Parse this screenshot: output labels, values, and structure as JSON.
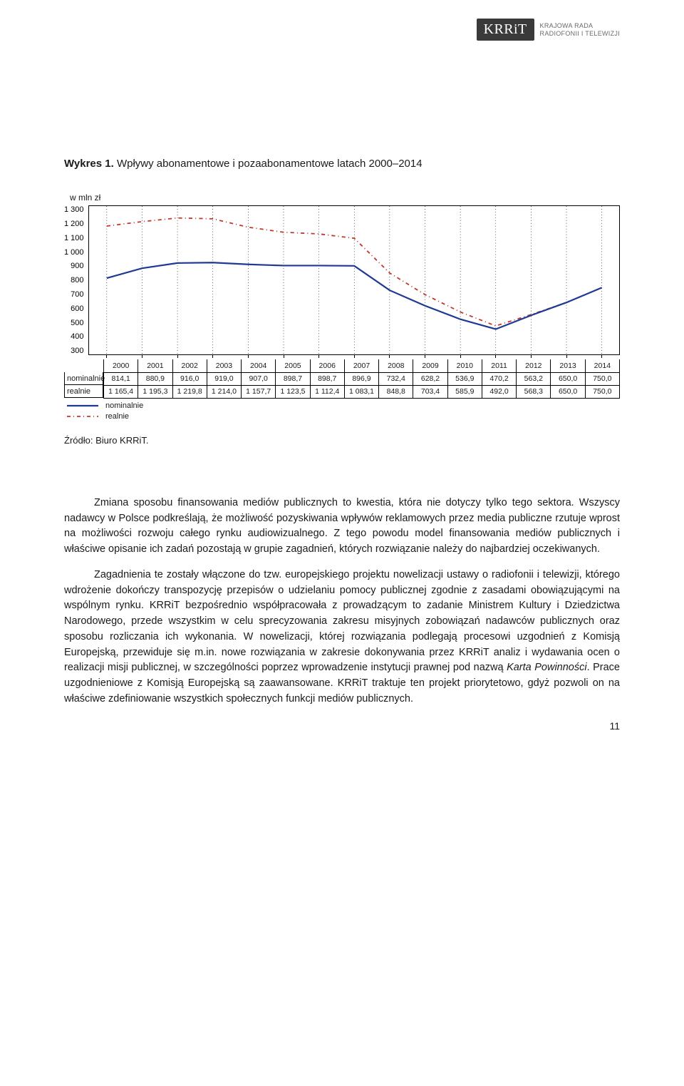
{
  "logo": {
    "mark": "KRRiT",
    "line1": "KRAJOWA RADA",
    "line2": "RADIOFONII I TELEWIZJI"
  },
  "chart": {
    "title_prefix": "Wykres 1.",
    "title_rest": " Wpływy abonamentowe i pozaabonamentowe latach 2000–2014",
    "y_unit": "w mln zł",
    "type": "line",
    "ylim": [
      300,
      1300
    ],
    "ytick_step": 100,
    "yticks": [
      "1 300",
      "1 200",
      "1 100",
      "1 000",
      "900",
      "800",
      "700",
      "600",
      "500",
      "400",
      "300"
    ],
    "years": [
      "2000",
      "2001",
      "2002",
      "2003",
      "2004",
      "2005",
      "2006",
      "2007",
      "2008",
      "2009",
      "2010",
      "2011",
      "2012",
      "2013",
      "2014"
    ],
    "series": {
      "nominalnie": {
        "label": "nominalnie",
        "color": "#1f3a93",
        "dash": "none",
        "width": 2.2,
        "values": [
          814.1,
          880.9,
          916.0,
          919.0,
          907.0,
          898.7,
          898.7,
          896.9,
          732.4,
          628.2,
          536.9,
          470.2,
          563.2,
          650.0,
          750.0
        ],
        "display": [
          "814,1",
          "880,9",
          "916,0",
          "919,0",
          "907,0",
          "898,7",
          "898,7",
          "896,9",
          "732,4",
          "628,2",
          "536,9",
          "470,2",
          "563,2",
          "650,0",
          "750,0"
        ]
      },
      "realnie": {
        "label": "realnie",
        "color": "#c0392b",
        "dash": "5,4,1,4",
        "width": 1.8,
        "values": [
          1165.4,
          1195.3,
          1219.8,
          1214.0,
          1157.7,
          1123.5,
          1112.4,
          1083.1,
          848.8,
          703.4,
          585.9,
          492.0,
          568.3,
          650.0,
          750.0
        ],
        "display": [
          "1 165,4",
          "1 195,3",
          "1 219,8",
          "1 214,0",
          "1 157,7",
          "1 123,5",
          "1 112,4",
          "1 083,1",
          "848,8",
          "703,4",
          "585,9",
          "492,0",
          "568,3",
          "650,0",
          "750,0"
        ]
      }
    },
    "row_headers": {
      "nominalnie": "nominalnie",
      "realnie": "realnie"
    },
    "plot_bg": "#ffffff",
    "grid_color": "#000000",
    "vgrid_dash": "1,3"
  },
  "source": "Źródło: Biuro KRRiT.",
  "paragraphs": {
    "p1": "Zmiana sposobu finansowania mediów publicznych to kwestia, która nie dotyczy tylko tego sektora. Wszyscy nadawcy w Polsce podkreślają, że możliwość pozyskiwania wpływów reklamowych przez media publiczne rzutuje wprost na możliwości rozwoju całego rynku audiowizualnego. Z tego powodu model finansowania mediów publicznych i właściwe opisanie ich zadań pozostają w grupie zagadnień, których rozwiązanie należy do najbardziej oczekiwanych.",
    "p2_a": "Zagadnienia te zostały włączone do tzw. europejskiego projektu nowelizacji ustawy o radiofonii i telewizji, którego wdrożenie dokończy transpozycję przepisów o udzielaniu pomocy publicznej zgodnie z zasadami obowiązującymi na wspólnym rynku. KRRiT bezpośrednio współpracowała z prowadzącym to zadanie Ministrem Kultury i Dziedzictwa Narodowego, przede wszystkim w celu sprecyzowania zakresu misyjnych zobowiązań nadawców publicznych oraz sposobu rozliczania ich wykonania. W nowelizacji, której rozwiązania podlegają procesowi uzgodnień z Komisją Europejską, przewiduje się m.in. nowe rozwiązania w zakresie dokonywania przez KRRiT analiz i wydawania ocen o realizacji misji publicznej, w szczególności poprzez wprowadzenie instytucji prawnej pod nazwą ",
    "p2_italic": "Karta Powinności",
    "p2_b": ". Prace uzgodnieniowe z Komisją Europejską są zaawansowane. KRRiT traktuje ten projekt priorytetowo, gdyż pozwoli on na właściwe zdefiniowanie wszystkich społecznych funkcji mediów publicznych."
  },
  "page_number": "11"
}
